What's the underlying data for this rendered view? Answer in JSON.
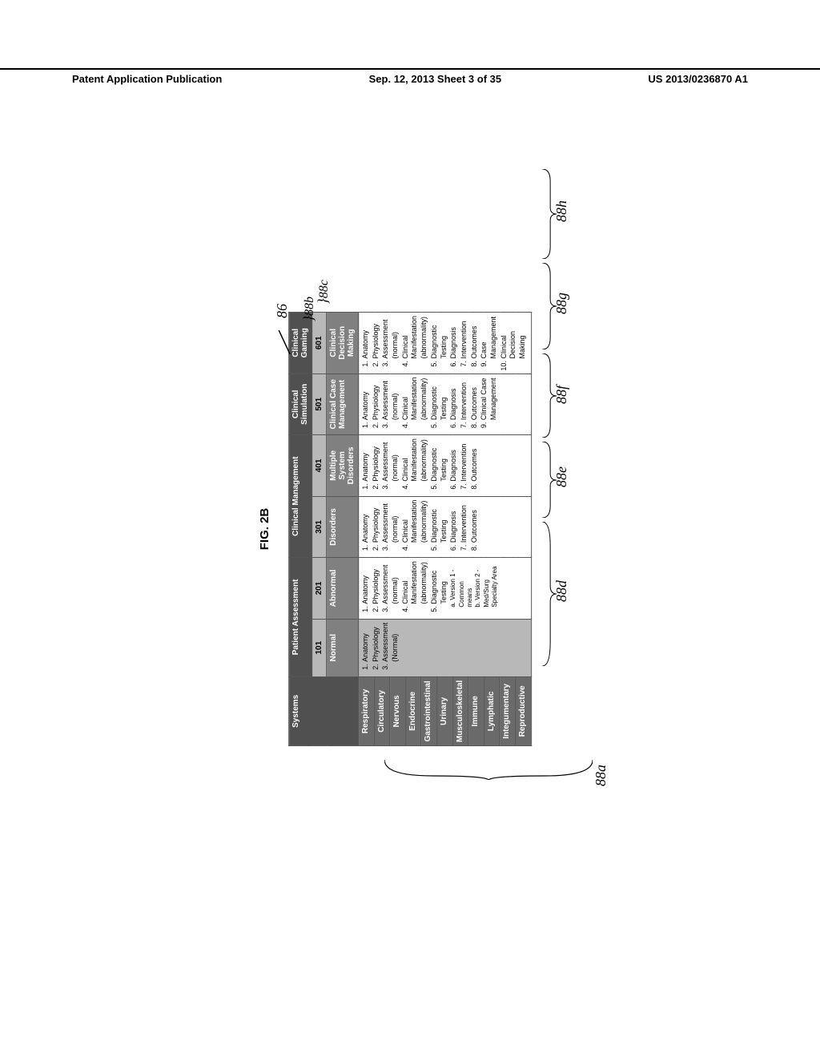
{
  "header": {
    "left": "Patent Application Publication",
    "center": "Sep. 12, 2013  Sheet 3 of 35",
    "right": "US 2013/0236870 A1"
  },
  "figure_label": "FIG. 2B",
  "top_headers": {
    "systems": "Systems",
    "patient_assessment": "Patient Assessment",
    "clinical_management": "Clinical Management",
    "clinical_simulation": "Clinical Simulation",
    "clinical_gaming": "Clinical Gaming"
  },
  "ids": {
    "normal": "101",
    "abnormal": "201",
    "disorders": "301",
    "msd": "401",
    "ccm": "501",
    "cdm": "601"
  },
  "sub_headers": {
    "normal": "Normal",
    "abnormal": "Abnormal",
    "disorders": "Disorders",
    "msd": "Multiple System Disorders",
    "ccm": "Clinical Case Management",
    "cdm": "Clinical Decision Making"
  },
  "systems": [
    "Respiratory",
    "Circulatory",
    "Nervous",
    "Endocrine",
    "Gastrointestinal",
    "Urinary",
    "Musculoskeletal",
    "Immune",
    "Lymphatic",
    "Integumentary",
    "Reproductive"
  ],
  "normal_items": [
    "Anatomy",
    "Physiology",
    "Assessment (Normal)"
  ],
  "abnormal_items": [
    "Anatomy",
    "Physiology",
    "Assessment (normal)",
    "Clinical Manifestation (abnormality)",
    "Diagnostic Testing"
  ],
  "abnormal_sub": {
    "a": "Version 1 - Common means",
    "b": "Version 2 - Med/Surg Specialty Area"
  },
  "disorders_items": [
    "Anatomy",
    "Physiology",
    "Assessment (normal)",
    "Clinical Manifestation (abnormality)",
    "Diagnostic Testing",
    "Diagnosis",
    "Intervention",
    "Outcomes"
  ],
  "msd_items": [
    "Anatomy",
    "Physiology",
    "Assessment (normal)",
    "Clinical Manifestation (abnormality)",
    "Diagnostic Testing",
    "Diagnosis",
    "Intervention",
    "Outcomes"
  ],
  "ccm_items": [
    "Anatomy",
    "Physiology",
    "Assessment (normal)",
    "Clinical Manifestation (abnormality)",
    "Diagnostic Testing",
    "Diagnosis",
    "Intervention",
    "Outcomes",
    "Clinical Case Management"
  ],
  "cdm_items": [
    "Anatomy",
    "Physiology",
    "Assessment (normal)",
    "Clinical Manifestation (abnormality)",
    "Diagnostic Testing",
    "Diagnosis",
    "Intervention",
    "Outcomes",
    "Case Management",
    "Clinical Decision Making"
  ],
  "annotations": {
    "main": "86",
    "gaming": "88b",
    "cdm_ref": "88c",
    "systems_brace": "88a",
    "d": "88d",
    "e": "88e",
    "f": "88f",
    "g": "88g",
    "h": "88h"
  },
  "colors": {
    "dark": "#505050",
    "med": "#808080",
    "light": "#b8b8b8",
    "sys": "#6a6a6a",
    "text": "#000000",
    "bg": "#ffffff"
  }
}
